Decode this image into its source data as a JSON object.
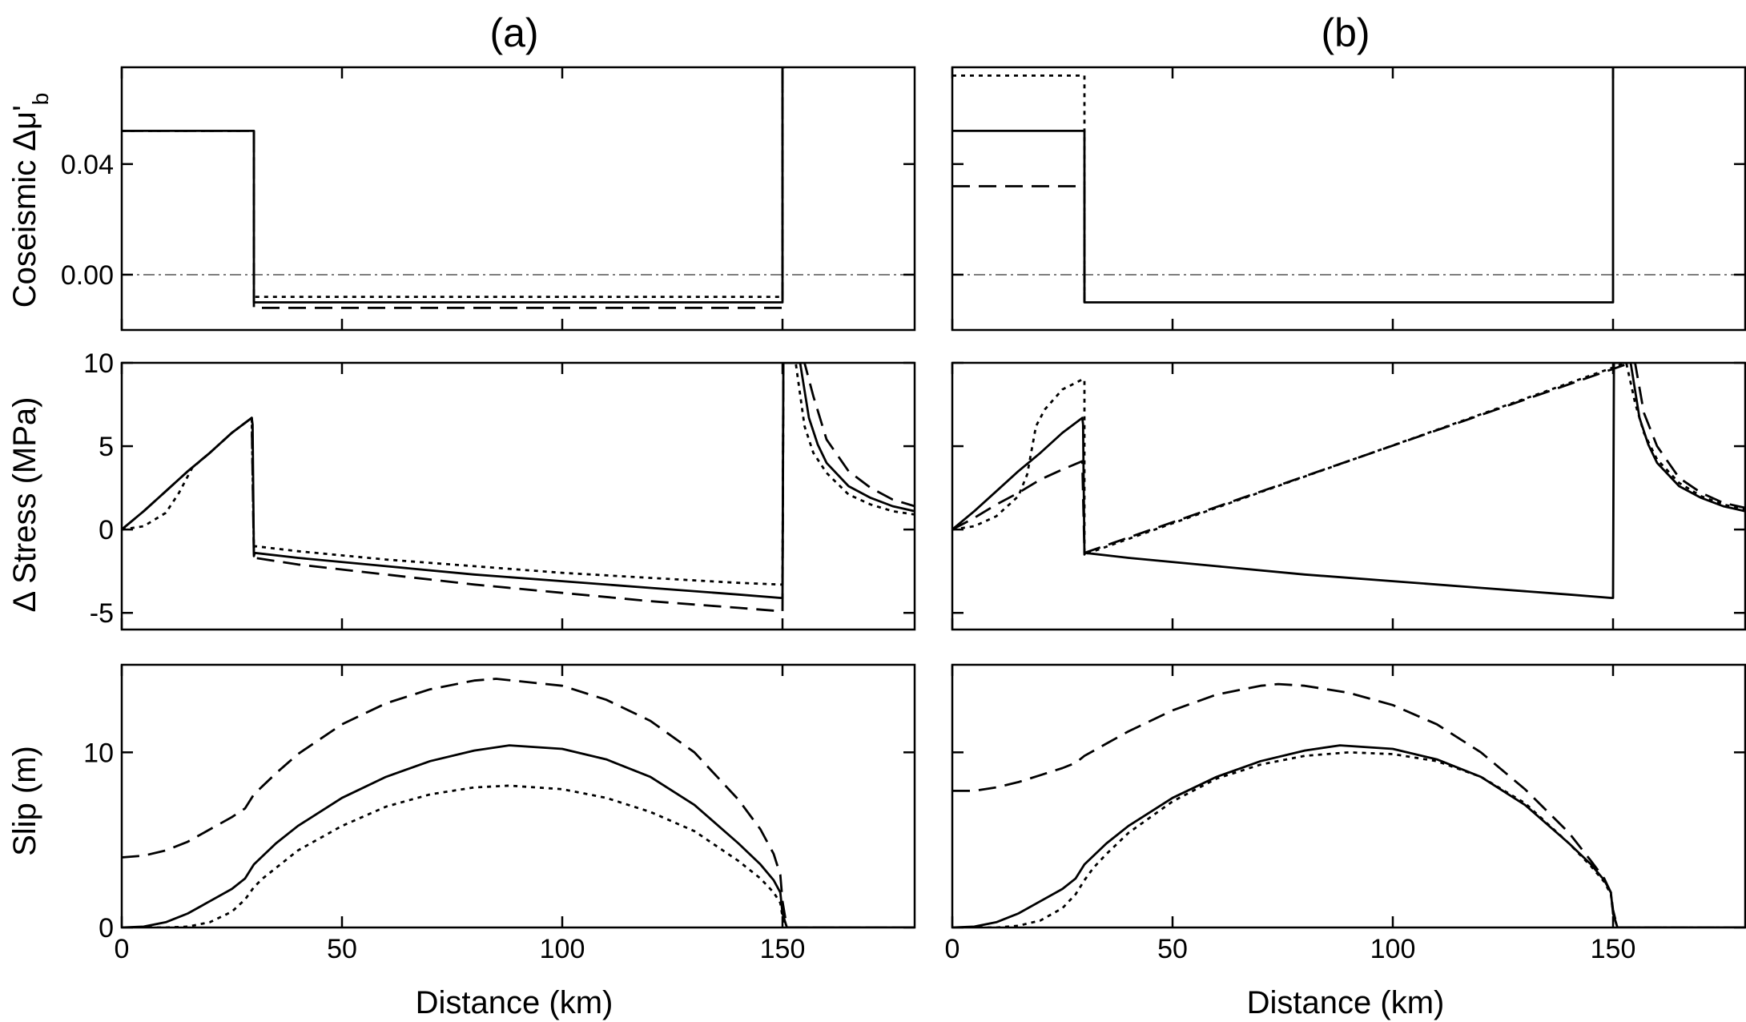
{
  "panel_titles": [
    "(a)",
    "(b)"
  ],
  "row_labels": [
    "Coseismic Δμ'_b",
    "Δ Stress (MPa)",
    "Slip (m)"
  ],
  "x_axis_label": "Distance (km)",
  "chart_data": [
    {
      "type": "line",
      "panel": "(a)",
      "row": 0,
      "ylabel": "Coseismic Δμ'_b",
      "xlabel": "",
      "xlim": [
        0,
        180
      ],
      "ylim": [
        -0.02,
        0.075
      ],
      "xticks": [
        0,
        50,
        100,
        150
      ],
      "xtick_labels": [
        "",
        "",
        "",
        ""
      ],
      "yticks": [
        0.0,
        0.04
      ],
      "ytick_labels": [
        "0.00",
        "0.04"
      ],
      "zero_line": true,
      "series": [
        {
          "style": "solid",
          "x": [
            0,
            30,
            30,
            150,
            150,
            150.5
          ],
          "y": [
            0.052,
            0.052,
            -0.01,
            -0.01,
            0.075,
            0.075
          ]
        },
        {
          "style": "dashed",
          "x": [
            0,
            30,
            30,
            150,
            150
          ],
          "y": [
            0.052,
            0.052,
            -0.012,
            -0.012,
            0.075
          ]
        },
        {
          "style": "dotted",
          "x": [
            0,
            30,
            30,
            150,
            150
          ],
          "y": [
            0.052,
            0.052,
            -0.008,
            -0.008,
            0.075
          ]
        }
      ]
    },
    {
      "type": "line",
      "panel": "(b)",
      "row": 0,
      "ylabel": "",
      "xlabel": "",
      "xlim": [
        0,
        180
      ],
      "ylim": [
        -0.02,
        0.075
      ],
      "xticks": [
        0,
        50,
        100,
        150
      ],
      "xtick_labels": [
        "",
        "",
        "",
        ""
      ],
      "yticks": [
        0.0,
        0.04
      ],
      "ytick_labels": [
        "",
        ""
      ],
      "zero_line": true,
      "series": [
        {
          "style": "solid",
          "x": [
            0,
            30,
            30,
            150,
            150
          ],
          "y": [
            0.052,
            0.052,
            -0.01,
            -0.01,
            0.075
          ]
        },
        {
          "style": "dashed",
          "x": [
            0,
            30,
            30
          ],
          "y": [
            0.032,
            0.032,
            -0.01
          ]
        },
        {
          "style": "dotted",
          "x": [
            0,
            30,
            30
          ],
          "y": [
            0.072,
            0.072,
            -0.01
          ]
        }
      ]
    },
    {
      "type": "line",
      "panel": "(a)",
      "row": 1,
      "ylabel": "Δ Stress (MPa)",
      "xlabel": "",
      "xlim": [
        0,
        180
      ],
      "ylim": [
        -6,
        10
      ],
      "xticks": [
        0,
        50,
        100,
        150
      ],
      "xtick_labels": [
        "",
        "",
        "",
        ""
      ],
      "yticks": [
        -5,
        0,
        5,
        10
      ],
      "ytick_labels": [
        "-5",
        "0",
        "5",
        "10"
      ],
      "zero_line": false,
      "series": [
        {
          "style": "solid",
          "x": [
            0,
            5,
            10,
            15,
            20,
            25,
            29.5,
            29.7,
            30,
            30.2,
            40,
            60,
            80,
            100,
            120,
            140,
            149.5,
            150,
            150.2,
            152,
            154,
            156,
            158,
            160,
            165,
            170,
            175,
            180
          ],
          "y": [
            0,
            1.1,
            2.3,
            3.5,
            4.6,
            5.8,
            6.7,
            6.3,
            -1.6,
            -1.4,
            -1.7,
            -2.2,
            -2.7,
            -3.1,
            -3.5,
            -3.9,
            -4.1,
            -4.1,
            10,
            10,
            10,
            6.7,
            5.1,
            4.0,
            2.6,
            1.9,
            1.4,
            1.1
          ]
        },
        {
          "style": "dashed",
          "x": [
            0,
            5,
            10,
            15,
            20,
            25,
            29.5,
            30,
            30.2,
            40,
            60,
            80,
            100,
            120,
            140,
            149.5,
            150,
            150.2,
            154,
            155,
            157,
            160,
            165,
            170,
            175,
            180
          ],
          "y": [
            0,
            1.1,
            2.3,
            3.5,
            4.6,
            5.8,
            6.7,
            -1.8,
            -1.7,
            -2.1,
            -2.7,
            -3.3,
            -3.8,
            -4.3,
            -4.7,
            -4.9,
            -4.9,
            10,
            10,
            10,
            8.0,
            5.4,
            3.5,
            2.5,
            1.8,
            1.4
          ]
        },
        {
          "style": "dotted",
          "x": [
            0,
            5,
            10,
            13,
            16,
            20,
            25,
            29.5,
            30,
            30.2,
            40,
            60,
            80,
            100,
            120,
            140,
            149.5,
            150,
            150.2,
            153,
            155,
            157,
            160,
            165,
            170,
            175,
            180
          ],
          "y": [
            0,
            0.2,
            1.0,
            2.2,
            3.7,
            4.6,
            5.8,
            6.7,
            -1.1,
            -1.0,
            -1.3,
            -1.8,
            -2.2,
            -2.6,
            -2.9,
            -3.2,
            -3.3,
            -3.3,
            10,
            10,
            6.2,
            4.6,
            3.4,
            2.1,
            1.5,
            1.1,
            0.9
          ]
        }
      ]
    },
    {
      "type": "line",
      "panel": "(b)",
      "row": 1,
      "ylabel": "",
      "xlabel": "",
      "xlim": [
        0,
        180
      ],
      "ylim": [
        -6,
        10
      ],
      "xticks": [
        0,
        50,
        100,
        150
      ],
      "xtick_labels": [
        "",
        "",
        "",
        ""
      ],
      "yticks": [
        -5,
        0,
        5,
        10
      ],
      "ytick_labels": [
        "",
        "",
        "",
        ""
      ],
      "zero_line": false,
      "series": [
        {
          "style": "solid",
          "x": [
            0,
            5,
            10,
            15,
            20,
            25,
            29.5,
            29.7,
            30,
            30.2,
            40,
            60,
            80,
            100,
            120,
            140,
            149.5,
            150,
            150.2,
            154,
            156,
            158,
            160,
            165,
            170,
            175,
            180
          ],
          "y": [
            0,
            1.1,
            2.3,
            3.5,
            4.6,
            5.8,
            6.7,
            6.3,
            -1.5,
            -1.4,
            -1.7,
            -2.2,
            -2.7,
            -3.1,
            -3.5,
            -3.9,
            -4.1,
            -4.1,
            10,
            10,
            6.7,
            5.1,
            4.0,
            2.6,
            1.9,
            1.4,
            1.1
          ]
        },
        {
          "style": "dashed",
          "x": [
            0,
            5,
            10,
            15,
            20,
            25,
            29.5,
            30,
            154,
            155,
            157,
            160,
            165,
            170,
            175,
            180
          ],
          "y": [
            0,
            0.7,
            1.5,
            2.2,
            3.0,
            3.6,
            4.1,
            -1.4,
            10,
            10,
            7.0,
            5.0,
            3.1,
            2.2,
            1.6,
            1.3
          ]
        },
        {
          "style": "dotted",
          "x": [
            0,
            5,
            10,
            15,
            17,
            19,
            21,
            25,
            29.5,
            30,
            30,
            153,
            155,
            157,
            160,
            165,
            170,
            175,
            180
          ],
          "y": [
            0,
            0.2,
            0.8,
            2.0,
            3.3,
            6.2,
            7.2,
            8.4,
            9.0,
            9.0,
            -1.5,
            10,
            7.6,
            5.8,
            4.2,
            2.8,
            2.0,
            1.5,
            1.2
          ]
        }
      ]
    },
    {
      "type": "line",
      "panel": "(a)",
      "row": 2,
      "ylabel": "Slip (m)",
      "xlabel": "Distance (km)",
      "xlim": [
        0,
        180
      ],
      "ylim": [
        0,
        15
      ],
      "xticks": [
        0,
        50,
        100,
        150
      ],
      "xtick_labels": [
        "0",
        "50",
        "100",
        "150"
      ],
      "yticks": [
        0,
        10
      ],
      "ytick_labels": [
        "0",
        "10"
      ],
      "zero_line": false,
      "series": [
        {
          "style": "solid",
          "x": [
            0,
            5,
            10,
            15,
            20,
            25,
            28,
            30,
            35,
            40,
            50,
            60,
            70,
            80,
            88,
            100,
            110,
            120,
            130,
            140,
            145,
            148,
            149.5,
            150,
            151,
            180
          ],
          "y": [
            0,
            0.05,
            0.3,
            0.8,
            1.5,
            2.2,
            2.8,
            3.6,
            4.8,
            5.8,
            7.4,
            8.6,
            9.5,
            10.1,
            10.4,
            10.2,
            9.6,
            8.6,
            7.0,
            4.8,
            3.6,
            2.7,
            2.0,
            0.8,
            0,
            0
          ]
        },
        {
          "style": "dashed",
          "x": [
            0,
            5,
            10,
            15,
            20,
            25,
            28,
            30,
            35,
            40,
            50,
            60,
            70,
            80,
            85,
            100,
            110,
            120,
            130,
            140,
            145,
            148,
            149.5,
            150,
            151,
            180
          ],
          "y": [
            4.0,
            4.1,
            4.4,
            4.9,
            5.6,
            6.3,
            6.8,
            7.6,
            8.8,
            9.9,
            11.6,
            12.8,
            13.6,
            14.1,
            14.2,
            13.8,
            13.0,
            11.8,
            10.0,
            7.3,
            5.6,
            4.2,
            3.0,
            1.5,
            0,
            0
          ]
        },
        {
          "style": "dotted",
          "x": [
            0,
            10,
            15,
            20,
            25,
            28,
            30,
            32,
            35,
            40,
            50,
            60,
            70,
            80,
            88,
            100,
            110,
            120,
            130,
            140,
            145,
            148,
            149.5,
            150,
            151,
            180
          ],
          "y": [
            0,
            0,
            0.05,
            0.3,
            0.9,
            1.6,
            2.3,
            2.8,
            3.4,
            4.4,
            5.8,
            6.9,
            7.6,
            8.0,
            8.1,
            7.9,
            7.4,
            6.6,
            5.5,
            3.8,
            2.8,
            2.0,
            1.4,
            0.6,
            0,
            0
          ]
        }
      ]
    },
    {
      "type": "line",
      "panel": "(b)",
      "row": 2,
      "ylabel": "",
      "xlabel": "Distance (km)",
      "xlim": [
        0,
        180
      ],
      "ylim": [
        0,
        15
      ],
      "xticks": [
        0,
        50,
        100,
        150
      ],
      "xtick_labels": [
        "0",
        "50",
        "100",
        "150"
      ],
      "yticks": [
        0,
        10
      ],
      "ytick_labels": [
        "",
        ""
      ],
      "zero_line": false,
      "series": [
        {
          "style": "solid",
          "x": [
            0,
            5,
            10,
            15,
            20,
            25,
            28,
            30,
            35,
            40,
            50,
            60,
            70,
            80,
            88,
            100,
            110,
            120,
            130,
            140,
            145,
            148,
            149.5,
            150,
            151,
            180
          ],
          "y": [
            0,
            0.05,
            0.3,
            0.8,
            1.5,
            2.2,
            2.8,
            3.6,
            4.8,
            5.8,
            7.4,
            8.6,
            9.5,
            10.1,
            10.4,
            10.2,
            9.6,
            8.6,
            7.0,
            4.8,
            3.6,
            2.7,
            2.0,
            0.8,
            0,
            0
          ]
        },
        {
          "style": "dashed",
          "x": [
            0,
            5,
            10,
            15,
            20,
            25,
            28,
            30,
            35,
            40,
            50,
            60,
            70,
            74,
            80,
            90,
            100,
            110,
            120,
            130,
            140,
            145,
            148,
            149.5,
            150,
            151,
            180
          ],
          "y": [
            7.8,
            7.8,
            8.0,
            8.3,
            8.7,
            9.1,
            9.4,
            9.8,
            10.5,
            11.2,
            12.4,
            13.3,
            13.8,
            13.9,
            13.8,
            13.4,
            12.7,
            11.6,
            10.0,
            7.9,
            5.4,
            3.8,
            2.8,
            2.0,
            1.0,
            0,
            0
          ]
        },
        {
          "style": "dotted",
          "x": [
            0,
            10,
            15,
            20,
            25,
            28,
            30,
            32,
            35,
            40,
            50,
            60,
            70,
            80,
            90,
            100,
            110,
            120,
            130,
            140,
            145,
            148,
            149.5,
            150,
            151,
            180
          ],
          "y": [
            0,
            0,
            0.1,
            0.4,
            1.1,
            1.9,
            2.7,
            3.4,
            4.2,
            5.4,
            7.2,
            8.5,
            9.3,
            9.8,
            10.0,
            9.9,
            9.5,
            8.6,
            7.1,
            4.8,
            3.5,
            2.6,
            1.9,
            0.8,
            0,
            0
          ]
        }
      ]
    }
  ]
}
